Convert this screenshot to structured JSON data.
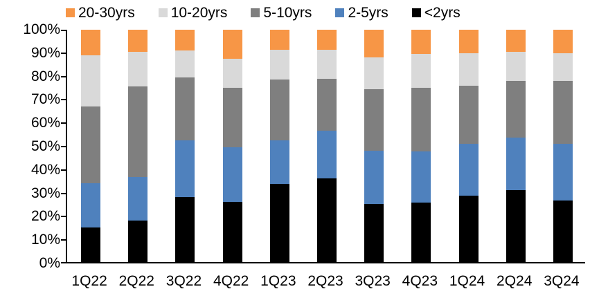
{
  "chart_data": {
    "type": "bar",
    "stacked": true,
    "percent_stacked": true,
    "title": "",
    "xlabel": "",
    "ylabel": "",
    "ylim": [
      0,
      100
    ],
    "grid": false,
    "legend_position": "top",
    "legend_order_left_to_right": [
      "20-30yrs",
      "10-20yrs",
      "5-10yrs",
      "2-5yrs",
      "<2yrs"
    ],
    "ytick_labels": [
      "0%",
      "10%",
      "20%",
      "30%",
      "40%",
      "50%",
      "60%",
      "70%",
      "80%",
      "90%",
      "100%"
    ],
    "categories": [
      "1Q22",
      "2Q22",
      "3Q22",
      "4Q22",
      "1Q23",
      "2Q23",
      "3Q23",
      "4Q23",
      "1Q24",
      "2Q24",
      "3Q24"
    ],
    "series": [
      {
        "name": "<2yrs",
        "color": "#000000",
        "values": [
          15.0,
          18.0,
          28.0,
          26.0,
          33.5,
          36.0,
          25.0,
          25.5,
          28.5,
          31.0,
          26.5
        ]
      },
      {
        "name": "2-5yrs",
        "color": "#4F81BD",
        "values": [
          19.0,
          18.5,
          24.5,
          23.5,
          19.0,
          20.5,
          23.0,
          22.0,
          22.5,
          22.5,
          24.5
        ]
      },
      {
        "name": "5-10yrs",
        "color": "#7F7F7F",
        "values": [
          33.0,
          39.0,
          27.0,
          25.5,
          26.0,
          22.5,
          26.5,
          27.5,
          25.0,
          24.5,
          27.0
        ]
      },
      {
        "name": "10-20yrs",
        "color": "#D9D9D9",
        "values": [
          22.0,
          15.0,
          11.5,
          12.5,
          13.0,
          12.5,
          13.5,
          14.5,
          14.0,
          12.5,
          12.0
        ]
      },
      {
        "name": "20-30yrs",
        "color": "#F79646",
        "values": [
          11.0,
          9.5,
          9.0,
          12.5,
          8.5,
          8.5,
          12.0,
          10.5,
          10.0,
          9.5,
          10.0
        ]
      }
    ]
  }
}
